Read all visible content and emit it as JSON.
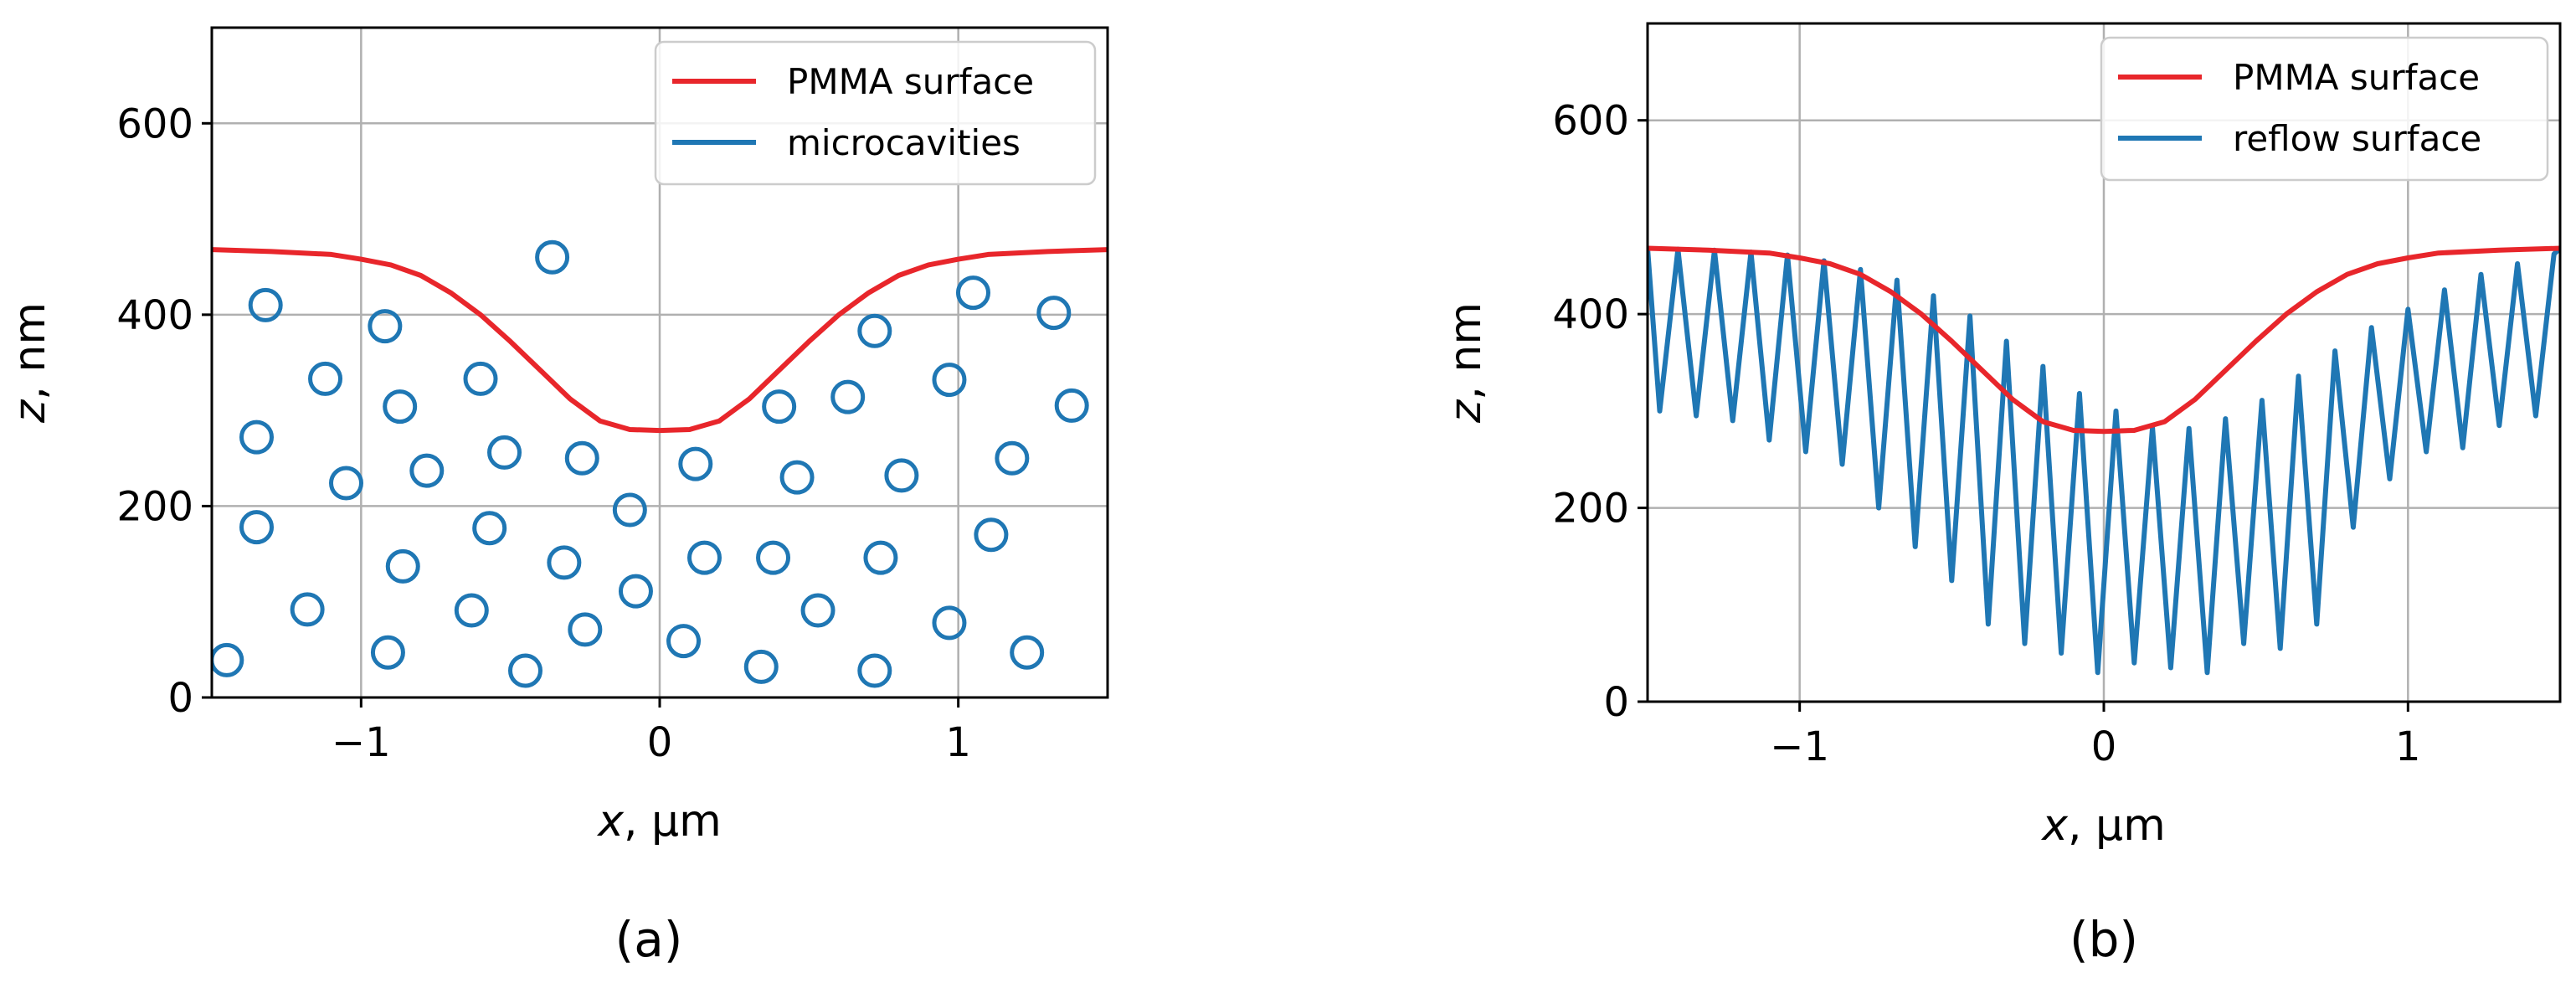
{
  "chart_data": [
    {
      "id": "a",
      "type": "line",
      "caption": "(a)",
      "xlabel_var": "x",
      "xlabel_unit": ", µm",
      "ylabel_var": "z",
      "ylabel_unit": ", nm",
      "xlim": [
        -1.5,
        1.5
      ],
      "ylim": [
        0,
        700
      ],
      "xticks": [
        -1,
        0,
        1
      ],
      "xtick_labels": [
        "−1",
        "0",
        "1"
      ],
      "yticks": [
        0,
        200,
        400,
        600
      ],
      "ytick_labels": [
        "0",
        "200",
        "400",
        "600"
      ],
      "grid": true,
      "legend_position": "top-right",
      "legend": [
        "PMMA surface",
        "microcavities"
      ],
      "colors": {
        "surface": "#e8262b",
        "secondary": "#1f77b4"
      },
      "series": [
        {
          "name": "PMMA surface",
          "kind": "line",
          "x": [
            -1.5,
            -1.3,
            -1.1,
            -1.0,
            -0.9,
            -0.8,
            -0.7,
            -0.6,
            -0.5,
            -0.4,
            -0.3,
            -0.2,
            -0.1,
            0.0,
            0.1,
            0.2,
            0.3,
            0.4,
            0.5,
            0.6,
            0.7,
            0.8,
            0.9,
            1.0,
            1.1,
            1.3,
            1.5
          ],
          "y": [
            468,
            466,
            463,
            458,
            452,
            441,
            423,
            400,
            372,
            342,
            312,
            289,
            280,
            279,
            280,
            289,
            312,
            342,
            372,
            400,
            423,
            441,
            452,
            458,
            463,
            466,
            468
          ]
        },
        {
          "name": "microcavities",
          "kind": "scatter",
          "x": [
            -1.32,
            -1.12,
            -0.92,
            -0.6,
            -0.36,
            0.72,
            1.05,
            1.32,
            -1.35,
            -0.87,
            -1.05,
            -0.78,
            -0.52,
            -0.26,
            0.12,
            0.4,
            0.63,
            0.97,
            1.18,
            1.38,
            -1.35,
            -0.57,
            0.46,
            0.81,
            -0.1,
            1.11,
            -0.86,
            -0.32,
            0.15,
            0.38,
            0.74,
            -1.18,
            -0.63,
            -0.08,
            0.53,
            0.97,
            -0.91,
            -0.25,
            0.08,
            -1.45,
            -0.45,
            0.34,
            0.72,
            1.23
          ],
          "y": [
            410,
            333,
            388,
            333,
            460,
            383,
            423,
            402,
            272,
            304,
            224,
            237,
            256,
            250,
            244,
            304,
            314,
            332,
            250,
            305,
            178,
            177,
            230,
            232,
            196,
            170,
            137,
            141,
            146,
            146,
            146,
            92,
            91,
            111,
            91,
            78,
            47,
            71,
            59,
            39,
            28,
            32,
            28,
            47
          ]
        }
      ]
    },
    {
      "id": "b",
      "type": "line",
      "caption": "(b)",
      "xlabel_var": "x",
      "xlabel_unit": ", µm",
      "ylabel_var": "z",
      "ylabel_unit": ", nm",
      "xlim": [
        -1.5,
        1.5
      ],
      "ylim": [
        0,
        700
      ],
      "xticks": [
        -1,
        0,
        1
      ],
      "xtick_labels": [
        "−1",
        "0",
        "1"
      ],
      "yticks": [
        0,
        200,
        400,
        600
      ],
      "ytick_labels": [
        "0",
        "200",
        "400",
        "600"
      ],
      "grid": true,
      "legend_position": "top-right",
      "legend": [
        "PMMA surface",
        "reflow surface"
      ],
      "colors": {
        "surface": "#e8262b",
        "secondary": "#1f77b4"
      },
      "series": [
        {
          "name": "PMMA surface",
          "kind": "line",
          "x": [
            -1.5,
            -1.3,
            -1.1,
            -1.0,
            -0.9,
            -0.8,
            -0.7,
            -0.6,
            -0.5,
            -0.4,
            -0.3,
            -0.2,
            -0.1,
            0.0,
            0.1,
            0.2,
            0.3,
            0.4,
            0.5,
            0.6,
            0.7,
            0.8,
            0.9,
            1.0,
            1.1,
            1.3,
            1.5
          ],
          "y": [
            468,
            466,
            463,
            458,
            452,
            441,
            423,
            400,
            372,
            342,
            312,
            289,
            280,
            279,
            280,
            289,
            312,
            342,
            372,
            400,
            423,
            441,
            452,
            458,
            463,
            466,
            468
          ]
        },
        {
          "name": "reflow surface",
          "kind": "line",
          "x": [
            -1.5,
            -1.46,
            -1.4,
            -1.34,
            -1.28,
            -1.22,
            -1.16,
            -1.1,
            -1.04,
            -0.98,
            -0.92,
            -0.86,
            -0.8,
            -0.74,
            -0.68,
            -0.62,
            -0.56,
            -0.5,
            -0.44,
            -0.38,
            -0.32,
            -0.26,
            -0.2,
            -0.14,
            -0.08,
            -0.02,
            0.04,
            0.1,
            0.16,
            0.22,
            0.28,
            0.34,
            0.4,
            0.46,
            0.52,
            0.58,
            0.64,
            0.7,
            0.76,
            0.82,
            0.88,
            0.94,
            1.0,
            1.06,
            1.12,
            1.18,
            1.24,
            1.3,
            1.36,
            1.42,
            1.48,
            1.5
          ],
          "y": [
            468,
            300,
            467,
            295,
            466,
            290,
            464,
            270,
            461,
            258,
            455,
            245,
            446,
            200,
            435,
            160,
            419,
            125,
            398,
            80,
            372,
            60,
            346,
            50,
            318,
            30,
            300,
            40,
            283,
            35,
            282,
            30,
            292,
            60,
            311,
            55,
            336,
            80,
            362,
            180,
            386,
            230,
            405,
            258,
            425,
            262,
            441,
            285,
            452,
            295,
            462,
            468
          ]
        }
      ]
    }
  ]
}
